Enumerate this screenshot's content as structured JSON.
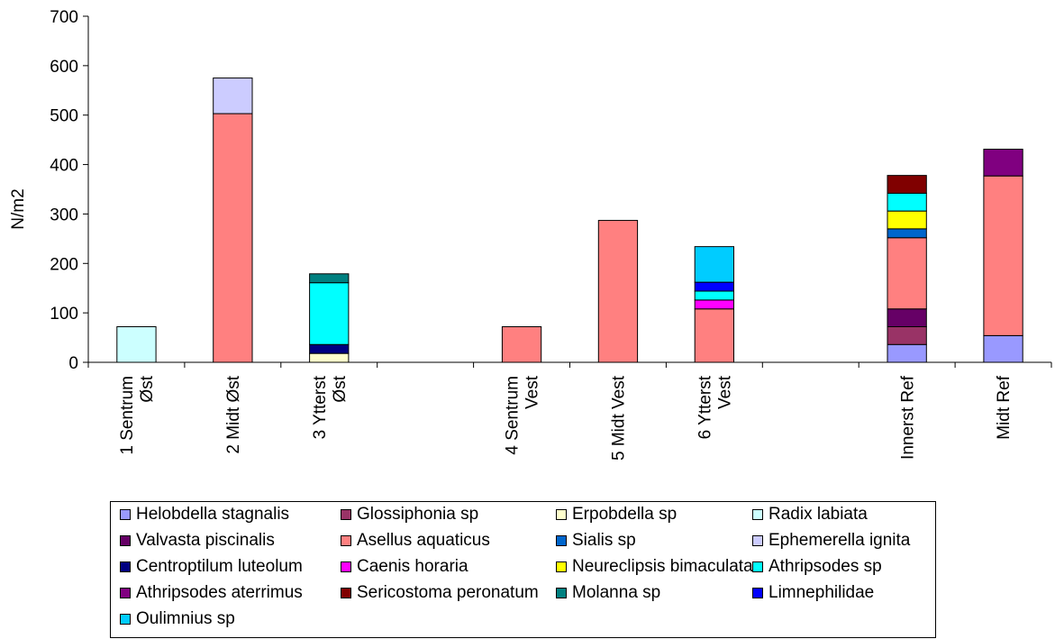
{
  "chart_data": {
    "type": "bar",
    "stacked": true,
    "xlabel": "",
    "ylabel": "N/m2",
    "ylim": [
      0,
      700
    ],
    "yticks": [
      0,
      100,
      200,
      300,
      400,
      500,
      600,
      700
    ],
    "grid": false,
    "legend_position": "bottom",
    "categories": [
      [
        "1 Sentrum",
        "Øst"
      ],
      [
        "2 Midt Øst"
      ],
      [
        "3 Ytterst",
        "Øst"
      ],
      [],
      [
        "4 Sentrum",
        "Vest"
      ],
      [
        "5 Midt Vest"
      ],
      [
        "6 Ytterst",
        "Vest"
      ],
      [],
      [
        "Innerst Ref"
      ],
      [
        "Midt Ref"
      ]
    ],
    "series": [
      {
        "name": "Helobdella stagnalis",
        "color": "#9999ff",
        "values": [
          0,
          0,
          0,
          0,
          0,
          0,
          0,
          0,
          36,
          54
        ]
      },
      {
        "name": "Glossiphonia sp",
        "color": "#993366",
        "values": [
          0,
          0,
          0,
          0,
          0,
          0,
          0,
          0,
          36,
          0
        ]
      },
      {
        "name": "Erpobdella sp",
        "color": "#ffffcc",
        "values": [
          0,
          0,
          18,
          0,
          0,
          0,
          0,
          0,
          0,
          0
        ]
      },
      {
        "name": "Radix labiata",
        "color": "#ccffff",
        "values": [
          72,
          0,
          0,
          0,
          0,
          0,
          0,
          0,
          0,
          0
        ]
      },
      {
        "name": "Valvasta piscinalis",
        "color": "#660066",
        "values": [
          0,
          0,
          0,
          0,
          0,
          0,
          0,
          0,
          36,
          0
        ]
      },
      {
        "name": "Asellus aquaticus",
        "color": "#ff8080",
        "values": [
          0,
          503,
          0,
          0,
          72,
          287,
          108,
          0,
          144,
          323
        ]
      },
      {
        "name": "Sialis sp",
        "color": "#0066cc",
        "values": [
          0,
          0,
          0,
          0,
          0,
          0,
          0,
          0,
          18,
          0
        ]
      },
      {
        "name": "Ephemerella ignita",
        "color": "#ccccff",
        "values": [
          0,
          72,
          0,
          0,
          0,
          0,
          0,
          0,
          0,
          0
        ]
      },
      {
        "name": "Centroptilum luteolum",
        "color": "#000080",
        "values": [
          0,
          0,
          18,
          0,
          0,
          0,
          0,
          0,
          0,
          0
        ]
      },
      {
        "name": "Caenis horaria",
        "color": "#ff00ff",
        "values": [
          0,
          0,
          0,
          0,
          0,
          0,
          18,
          0,
          0,
          0
        ]
      },
      {
        "name": "Neureclipsis bimaculata",
        "color": "#ffff00",
        "values": [
          0,
          0,
          0,
          0,
          0,
          0,
          0,
          0,
          36,
          0
        ]
      },
      {
        "name": "Athripsodes sp",
        "color": "#00ffff",
        "values": [
          0,
          0,
          125,
          0,
          0,
          0,
          18,
          0,
          36,
          0
        ]
      },
      {
        "name": "Athripsodes aterrimus",
        "color": "#800080",
        "values": [
          0,
          0,
          0,
          0,
          0,
          0,
          0,
          0,
          0,
          54
        ]
      },
      {
        "name": "Sericostoma peronatum",
        "color": "#800000",
        "values": [
          0,
          0,
          0,
          0,
          0,
          0,
          0,
          0,
          36,
          0
        ]
      },
      {
        "name": "Molanna sp",
        "color": "#008080",
        "values": [
          0,
          0,
          18,
          0,
          0,
          0,
          0,
          0,
          0,
          0
        ]
      },
      {
        "name": "Limnephilidae",
        "color": "#0000ff",
        "values": [
          0,
          0,
          0,
          0,
          0,
          0,
          18,
          0,
          0,
          0
        ]
      },
      {
        "name": "Oulimnius sp",
        "color": "#00ccff",
        "values": [
          0,
          0,
          0,
          0,
          0,
          0,
          72,
          0,
          0,
          0
        ]
      }
    ]
  }
}
